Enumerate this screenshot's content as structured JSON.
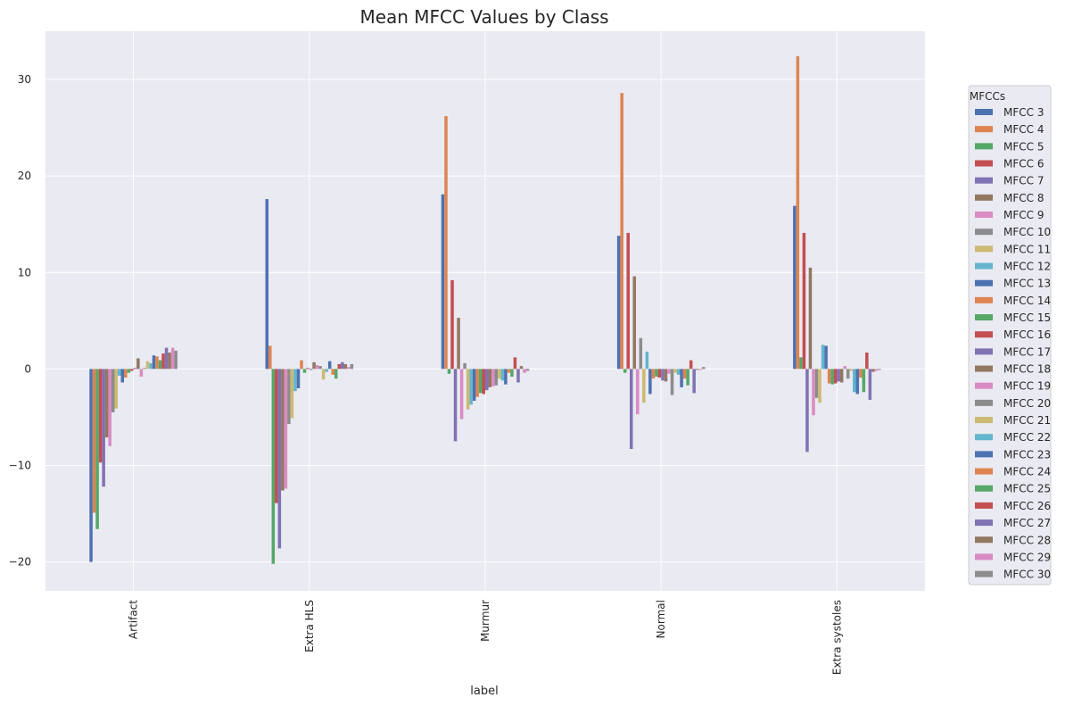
{
  "chart_data": {
    "type": "bar",
    "title": "Mean MFCC Values by Class",
    "xlabel": "label",
    "ylabel": "",
    "ylim": [
      -23,
      35
    ],
    "yticks": [
      -20,
      -10,
      0,
      10,
      20,
      30
    ],
    "ytick_labels": [
      "−20",
      "−10",
      "0",
      "10",
      "20",
      "30"
    ],
    "categories": [
      "Artifact",
      "Extra HLS",
      "Murmur",
      "Normal",
      "Extra systoles"
    ],
    "grid": true,
    "legend": {
      "title": "MFCCs",
      "placement": "right"
    },
    "series": [
      {
        "name": "MFCC 3",
        "color": "#4c72b0",
        "values": [
          -20.0,
          17.6,
          18.1,
          13.8,
          16.9
        ]
      },
      {
        "name": "MFCC 4",
        "color": "#dd8452",
        "values": [
          -14.9,
          2.4,
          26.2,
          28.6,
          32.4
        ]
      },
      {
        "name": "MFCC 5",
        "color": "#55a868",
        "values": [
          -16.6,
          -20.2,
          -0.5,
          -0.4,
          1.2
        ]
      },
      {
        "name": "MFCC 6",
        "color": "#c44e52",
        "values": [
          -9.7,
          -13.9,
          9.2,
          14.1,
          14.1
        ]
      },
      {
        "name": "MFCC 7",
        "color": "#8172b3",
        "values": [
          -12.2,
          -18.6,
          -7.5,
          -8.3,
          -8.6
        ]
      },
      {
        "name": "MFCC 8",
        "color": "#937860",
        "values": [
          -7.1,
          -12.6,
          5.3,
          9.6,
          10.5
        ]
      },
      {
        "name": "MFCC 9",
        "color": "#da8bc3",
        "values": [
          -8.0,
          -12.4,
          -5.2,
          -4.7,
          -4.8
        ]
      },
      {
        "name": "MFCC 10",
        "color": "#8c8c8c",
        "values": [
          -4.5,
          -5.7,
          0.6,
          3.2,
          -3.0
        ]
      },
      {
        "name": "MFCC 11",
        "color": "#ccb974",
        "values": [
          -4.1,
          -5.1,
          -4.2,
          -3.5,
          -3.5
        ]
      },
      {
        "name": "MFCC 12",
        "color": "#64b5cd",
        "values": [
          -0.7,
          -2.3,
          -3.7,
          1.8,
          2.5
        ]
      },
      {
        "name": "MFCC 13",
        "color": "#4c72b0",
        "values": [
          -1.4,
          -2.0,
          -3.3,
          -2.6,
          2.4
        ]
      },
      {
        "name": "MFCC 14",
        "color": "#dd8452",
        "values": [
          -0.9,
          0.9,
          -2.9,
          -1.0,
          -1.5
        ]
      },
      {
        "name": "MFCC 15",
        "color": "#55a868",
        "values": [
          -0.4,
          -0.4,
          -2.5,
          -0.8,
          -1.6
        ]
      },
      {
        "name": "MFCC 16",
        "color": "#c44e52",
        "values": [
          -0.2,
          0.1,
          -2.6,
          -0.9,
          -1.5
        ]
      },
      {
        "name": "MFCC 17",
        "color": "#8172b3",
        "values": [
          0.1,
          -0.1,
          -2.2,
          -1.2,
          -1.3
        ]
      },
      {
        "name": "MFCC 18",
        "color": "#937860",
        "values": [
          1.1,
          0.7,
          -1.9,
          -1.3,
          -1.4
        ]
      },
      {
        "name": "MFCC 19",
        "color": "#da8bc3",
        "values": [
          -0.8,
          0.4,
          -1.8,
          -0.5,
          0.3
        ]
      },
      {
        "name": "MFCC 20",
        "color": "#8c8c8c",
        "values": [
          0.1,
          0.3,
          -1.7,
          -2.7,
          -1.0
        ]
      },
      {
        "name": "MFCC 21",
        "color": "#ccb974",
        "values": [
          0.8,
          -1.1,
          -1.0,
          -0.4,
          -0.2
        ]
      },
      {
        "name": "MFCC 22",
        "color": "#64b5cd",
        "values": [
          0.6,
          -0.3,
          -1.2,
          -0.6,
          -2.4
        ]
      },
      {
        "name": "MFCC 23",
        "color": "#4c72b0",
        "values": [
          1.4,
          0.8,
          -1.6,
          -1.9,
          -2.6
        ]
      },
      {
        "name": "MFCC 24",
        "color": "#dd8452",
        "values": [
          1.3,
          -0.6,
          -0.4,
          -1.0,
          -0.9
        ]
      },
      {
        "name": "MFCC 25",
        "color": "#55a868",
        "values": [
          0.9,
          -1.0,
          -0.8,
          -1.7,
          -2.4
        ]
      },
      {
        "name": "MFCC 26",
        "color": "#c44e52",
        "values": [
          1.6,
          0.5,
          1.2,
          0.9,
          1.7
        ]
      },
      {
        "name": "MFCC 27",
        "color": "#8172b3",
        "values": [
          2.2,
          0.7,
          -1.4,
          -2.5,
          -3.2
        ]
      },
      {
        "name": "MFCC 28",
        "color": "#937860",
        "values": [
          1.7,
          0.5,
          0.3,
          -0.1,
          -0.3
        ]
      },
      {
        "name": "MFCC 29",
        "color": "#da8bc3",
        "values": [
          2.2,
          0.2,
          -0.4,
          -0.1,
          -0.2
        ]
      },
      {
        "name": "MFCC 30",
        "color": "#8c8c8c",
        "values": [
          1.9,
          0.5,
          -0.2,
          0.2,
          -0.1
        ]
      }
    ]
  }
}
